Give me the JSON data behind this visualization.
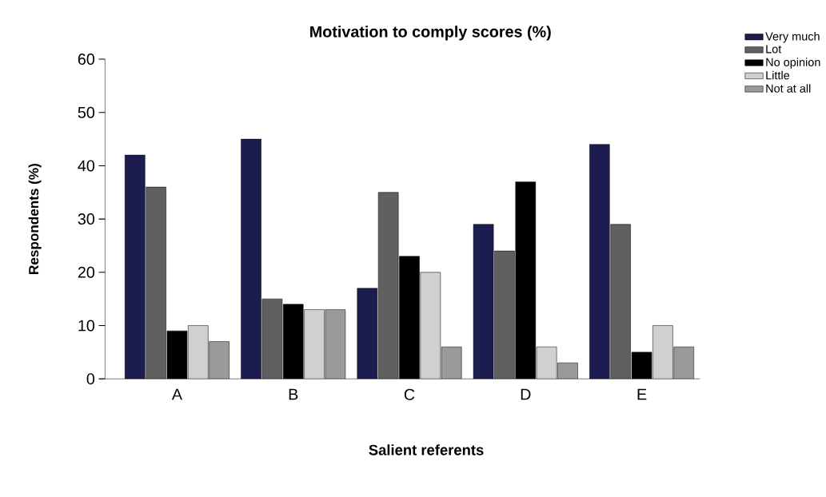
{
  "chart_data": {
    "type": "bar",
    "title": "Motivation to comply scores (%)",
    "xlabel": "Salient referents",
    "ylabel": "Respondents (%)",
    "categories": [
      "A",
      "B",
      "C",
      "D",
      "E"
    ],
    "series": [
      {
        "name": "Very much",
        "color": "#1c1c50",
        "values": [
          42,
          45,
          17,
          29,
          44
        ]
      },
      {
        "name": "Lot",
        "color": "#606060",
        "values": [
          36,
          15,
          35,
          24,
          29
        ]
      },
      {
        "name": "No opinion",
        "color": "#000000",
        "values": [
          9,
          14,
          23,
          37,
          5
        ]
      },
      {
        "name": "Little",
        "color": "#d0d0d0",
        "values": [
          10,
          13,
          20,
          6,
          10
        ]
      },
      {
        "name": "Not at all",
        "color": "#9a9a9a",
        "values": [
          7,
          13,
          6,
          3,
          6
        ]
      }
    ],
    "ylim": [
      0,
      60
    ],
    "yticks": [
      0,
      10,
      20,
      30,
      40,
      50,
      60
    ],
    "legend": "top right",
    "grid": false
  }
}
